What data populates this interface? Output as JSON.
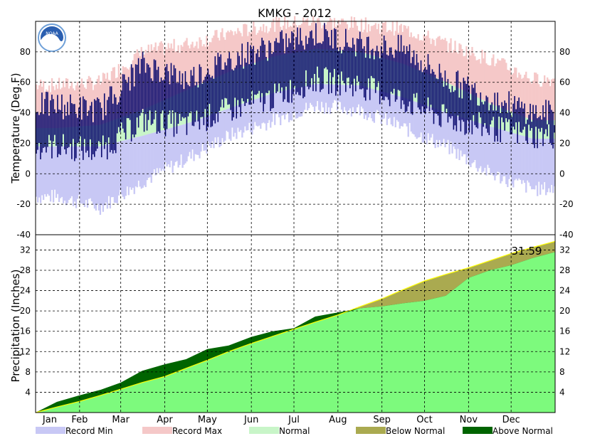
{
  "colors": {
    "record_min": "#c8c8f5",
    "record_max": "#f5c8c8",
    "normal": "#c8f5c8",
    "observed": "#0a0a6e",
    "precip_normal": "#7dfa7d",
    "below_normal": "#aaaa50",
    "above_normal": "#006400",
    "normal_line": "#ffff00"
  },
  "chart_data": [
    {
      "type": "bar",
      "title": "KMKG - 2012",
      "ylabel": "Temperature (Deg.F)",
      "ylim": [
        -40,
        100
      ],
      "yticks": [
        80,
        60,
        40,
        20,
        0,
        -20,
        -40
      ],
      "grid": true,
      "legend": "bottom",
      "categories": [
        "Jan",
        "Feb",
        "Mar",
        "Apr",
        "May",
        "Jun",
        "Jul",
        "Aug",
        "Sep",
        "Oct",
        "Nov",
        "Dec"
      ],
      "monthly": {
        "record_min": [
          -15,
          -22,
          -5,
          10,
          25,
          35,
          45,
          42,
          30,
          18,
          0,
          -10
        ],
        "record_max": [
          58,
          60,
          80,
          85,
          92,
          98,
          100,
          98,
          95,
          85,
          75,
          62
        ],
        "normal_low": [
          18,
          18,
          25,
          33,
          43,
          53,
          59,
          58,
          50,
          40,
          31,
          23
        ],
        "normal_high": [
          30,
          32,
          42,
          55,
          67,
          77,
          82,
          80,
          72,
          60,
          46,
          35
        ],
        "observed_low": [
          18,
          15,
          35,
          32,
          42,
          50,
          62,
          58,
          48,
          36,
          30,
          25
        ],
        "observed_high": [
          45,
          42,
          72,
          62,
          75,
          84,
          92,
          85,
          82,
          62,
          50,
          40
        ]
      }
    },
    {
      "type": "area",
      "ylabel": "Precipitation (Inches)",
      "ylim": [
        0,
        35
      ],
      "yticks": [
        32,
        28,
        24,
        20,
        16,
        12,
        8,
        4
      ],
      "grid": true,
      "annotation": "31.59",
      "categories": [
        "Jan",
        "Feb",
        "Mar",
        "Apr",
        "May",
        "Jun",
        "Jul",
        "Aug",
        "Sep",
        "Oct",
        "Nov",
        "Dec"
      ],
      "x_day": [
        0,
        15,
        31,
        46,
        60,
        75,
        91,
        106,
        121,
        136,
        152,
        167,
        182,
        197,
        213,
        228,
        244,
        259,
        274,
        289,
        305,
        320,
        335,
        350,
        366
      ],
      "normal_cumulative": [
        0,
        1.1,
        2.2,
        3.4,
        4.6,
        5.9,
        7.1,
        8.7,
        10.3,
        12.0,
        13.6,
        15.0,
        16.4,
        17.8,
        19.2,
        20.8,
        22.4,
        24.2,
        25.9,
        27.2,
        28.5,
        29.9,
        31.3,
        32.5,
        33.7
      ],
      "observed_cumulative": [
        0,
        2.1,
        3.4,
        4.5,
        5.9,
        8.2,
        9.5,
        10.5,
        12.5,
        13.2,
        14.9,
        16.0,
        16.6,
        18.9,
        19.7,
        20.5,
        20.9,
        21.5,
        22.0,
        23.0,
        26.5,
        28.0,
        29.0,
        30.4,
        31.59
      ]
    }
  ],
  "legend": [
    {
      "label": "Record Min",
      "color_key": "record_min"
    },
    {
      "label": "Record Max",
      "color_key": "record_max"
    },
    {
      "label": "Normal",
      "color_key": "normal"
    },
    {
      "label": "Below Normal",
      "color_key": "below_normal"
    },
    {
      "label": "Above Normal",
      "color_key": "above_normal"
    }
  ]
}
